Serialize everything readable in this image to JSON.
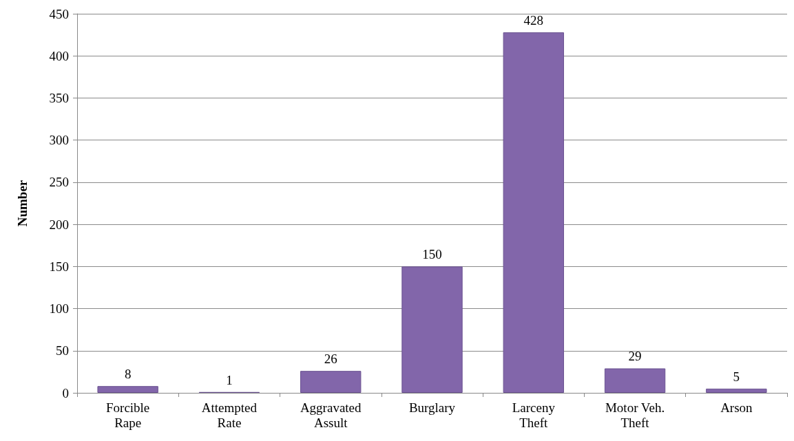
{
  "chart_data": {
    "type": "bar",
    "ylabel": "Number",
    "categories": [
      "Forcible\nRape",
      "Attempted\nRate",
      "Aggravated\nAssult",
      "Burglary",
      "Larceny\nTheft",
      "Motor Veh.\nTheft",
      "Arson"
    ],
    "values": [
      8,
      1,
      26,
      150,
      428,
      29,
      5
    ],
    "color": "#8266aa",
    "ylim": [
      0,
      450
    ],
    "yticks": [
      0,
      50,
      100,
      150,
      200,
      250,
      300,
      350,
      400,
      450
    ],
    "grid": "y",
    "data_labels": true
  }
}
